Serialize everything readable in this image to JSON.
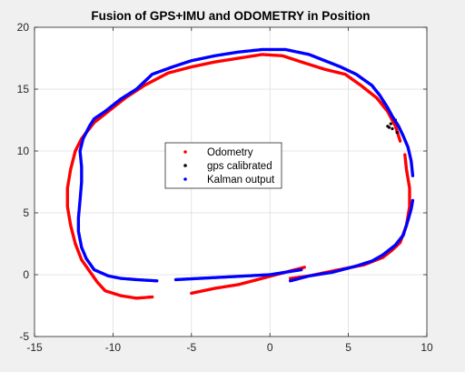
{
  "chart_data": {
    "type": "scatter",
    "title": "Fusion of GPS+IMU and ODOMETRY in Position",
    "xlabel": "",
    "ylabel": "",
    "xlim": [
      -15,
      10
    ],
    "ylim": [
      -5,
      20
    ],
    "xticks": [
      -15,
      -10,
      -5,
      0,
      5,
      10
    ],
    "yticks": [
      -5,
      0,
      5,
      10,
      15,
      20
    ],
    "grid": true,
    "legend_placement": "center",
    "colors": {
      "odometry": "#ff0000",
      "gps": "#000000",
      "kalman": "#0000ff"
    },
    "series": [
      {
        "name": "Odometry",
        "color": "#ff0000",
        "segments": [
          [
            [
              -7.5,
              -1.8
            ],
            [
              -8.5,
              -1.9
            ],
            [
              -9.5,
              -1.7
            ],
            [
              -10.5,
              -1.3
            ],
            [
              -11.0,
              -0.6
            ],
            [
              -11.5,
              0.3
            ],
            [
              -12.0,
              1.2
            ],
            [
              -12.4,
              2.5
            ],
            [
              -12.7,
              4.0
            ],
            [
              -12.9,
              5.5
            ],
            [
              -12.9,
              7.0
            ],
            [
              -12.7,
              8.5
            ],
            [
              -12.4,
              10.0
            ],
            [
              -12.0,
              11.0
            ],
            [
              -11.2,
              12.3
            ],
            [
              -10.2,
              13.3
            ],
            [
              -9.2,
              14.3
            ],
            [
              -8.0,
              15.3
            ],
            [
              -6.5,
              16.3
            ],
            [
              -5.0,
              16.8
            ],
            [
              -3.5,
              17.2
            ],
            [
              -2.0,
              17.5
            ],
            [
              -0.5,
              17.8
            ],
            [
              0.8,
              17.7
            ],
            [
              2.0,
              17.2
            ],
            [
              3.5,
              16.6
            ],
            [
              4.8,
              16.2
            ],
            [
              5.8,
              15.3
            ],
            [
              6.8,
              14.3
            ],
            [
              7.5,
              13.2
            ],
            [
              8.0,
              12.0
            ],
            [
              8.3,
              10.8
            ]
          ],
          [
            [
              -5.0,
              -1.5
            ],
            [
              -3.5,
              -1.1
            ],
            [
              -2.0,
              -0.8
            ],
            [
              -0.5,
              -0.3
            ],
            [
              1.0,
              0.2
            ],
            [
              2.2,
              0.6
            ]
          ],
          [
            [
              1.3,
              -0.3
            ],
            [
              2.5,
              -0.1
            ],
            [
              4.0,
              0.3
            ],
            [
              6.0,
              0.8
            ],
            [
              7.2,
              1.4
            ],
            [
              7.8,
              2.0
            ],
            [
              8.3,
              2.6
            ],
            [
              8.7,
              4.0
            ],
            [
              8.9,
              5.5
            ],
            [
              8.9,
              7.0
            ],
            [
              8.7,
              8.5
            ],
            [
              8.6,
              9.7
            ]
          ]
        ]
      },
      {
        "name": "gps calibrated",
        "color": "#000000",
        "points": [
          [
            7.7,
            12.2
          ],
          [
            7.6,
            11.9
          ],
          [
            7.8,
            11.8
          ],
          [
            8.0,
            12.5
          ],
          [
            7.5,
            12.0
          ],
          [
            8.1,
            11.5
          ]
        ]
      },
      {
        "name": "Kalman output",
        "color": "#0000ff",
        "segments": [
          [
            [
              -7.2,
              -0.5
            ],
            [
              -8.5,
              -0.4
            ],
            [
              -9.5,
              -0.3
            ],
            [
              -10.3,
              -0.1
            ],
            [
              -11.2,
              0.4
            ],
            [
              -11.7,
              1.3
            ],
            [
              -12.0,
              2.2
            ],
            [
              -12.2,
              3.5
            ],
            [
              -12.2,
              4.6
            ],
            [
              -12.1,
              6.0
            ],
            [
              -12.0,
              7.5
            ],
            [
              -12.0,
              8.7
            ],
            [
              -12.1,
              10.0
            ],
            [
              -11.9,
              11.0
            ],
            [
              -11.5,
              12.0
            ],
            [
              -11.2,
              12.6
            ],
            [
              -10.5,
              13.2
            ],
            [
              -9.5,
              14.2
            ],
            [
              -8.5,
              15.0
            ],
            [
              -7.5,
              16.2
            ],
            [
              -6.2,
              16.8
            ],
            [
              -5.0,
              17.3
            ],
            [
              -3.5,
              17.7
            ],
            [
              -2.0,
              18.0
            ],
            [
              -0.5,
              18.2
            ],
            [
              1.0,
              18.2
            ],
            [
              2.5,
              17.8
            ],
            [
              3.5,
              17.3
            ],
            [
              4.5,
              16.8
            ],
            [
              5.5,
              16.2
            ],
            [
              6.5,
              15.3
            ],
            [
              7.0,
              14.5
            ],
            [
              7.5,
              13.5
            ],
            [
              7.8,
              12.8
            ],
            [
              8.2,
              12.0
            ],
            [
              8.5,
              11.2
            ],
            [
              8.8,
              10.3
            ],
            [
              9.0,
              9.2
            ],
            [
              9.1,
              8.0
            ]
          ],
          [
            [
              1.3,
              -0.5
            ],
            [
              2.5,
              -0.1
            ],
            [
              4.0,
              0.2
            ],
            [
              5.5,
              0.7
            ],
            [
              6.5,
              1.1
            ],
            [
              7.2,
              1.6
            ],
            [
              8.0,
              2.4
            ],
            [
              8.5,
              3.2
            ],
            [
              8.8,
              4.4
            ],
            [
              9.0,
              5.3
            ],
            [
              9.1,
              6.0
            ]
          ],
          [
            [
              -6.0,
              -0.4
            ],
            [
              -4.5,
              -0.3
            ],
            [
              -3.0,
              -0.2
            ],
            [
              -1.5,
              -0.1
            ],
            [
              0.0,
              0.0
            ],
            [
              1.0,
              0.2
            ],
            [
              2.0,
              0.4
            ]
          ]
        ]
      }
    ]
  }
}
